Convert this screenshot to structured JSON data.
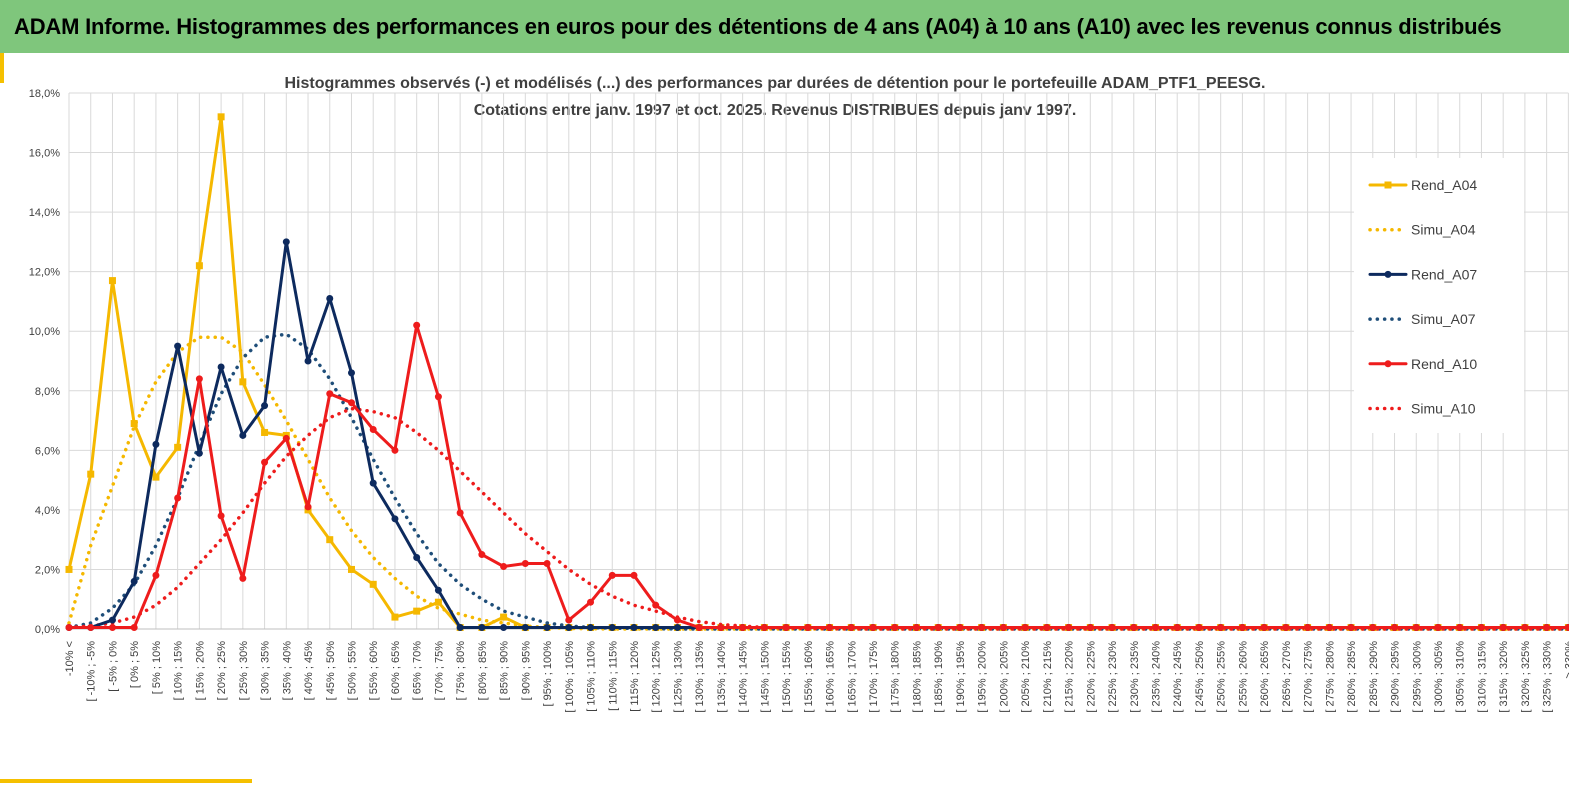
{
  "banner": {
    "title": "ADAM Informe. Histogrammes des performances en euros pour des détentions de 4 ans (A04) à 10 ans (A10) avec les revenus connus distribués"
  },
  "chart_data": {
    "type": "line",
    "title_line1": "Histogrammes observés (-) et modélisés (...) des performances par durées de détention pour le portefeuille ADAM_PTF1_PEESG.",
    "title_line2": "Cotations entre janv. 1997 et oct. 2025. Revenus DISTRIBUES depuis janv 1997.",
    "ylim": [
      0,
      18
    ],
    "y_ticks": [
      "0,0%",
      "2,0%",
      "4,0%",
      "6,0%",
      "8,0%",
      "10,0%",
      "12,0%",
      "14,0%",
      "16,0%",
      "18,0%"
    ],
    "categories": [
      "-10% <",
      "[ -10% ; -5%",
      "[ -5% ; 0%",
      "[ 0% ; 5%",
      "[ 5% ; 10%",
      "[ 10% ; 15%",
      "[ 15% ; 20%",
      "[ 20% ; 25%",
      "[ 25% ; 30%",
      "[ 30% ; 35%",
      "[ 35% ; 40%",
      "[ 40% ; 45%",
      "[ 45% ; 50%",
      "[ 50% ; 55%",
      "[ 55% ; 60%",
      "[ 60% ; 65%",
      "[ 65% ; 70%",
      "[ 70% ; 75%",
      "[ 75% ; 80%",
      "[ 80% ; 85%",
      "[ 85% ; 90%",
      "[ 90% ; 95%",
      "[ 95% ; 100%",
      "[ 100% ; 105%",
      "[ 105% ; 110%",
      "[ 110% ; 115%",
      "[ 115% ; 120%",
      "[ 120% ; 125%",
      "[ 125% ; 130%",
      "[ 130% ; 135%",
      "[ 135% ; 140%",
      "[ 140% ; 145%",
      "[ 145% ; 150%",
      "[ 150% ; 155%",
      "[ 155% ; 160%",
      "[ 160% ; 165%",
      "[ 165% ; 170%",
      "[ 170% ; 175%",
      "[ 175% ; 180%",
      "[ 180% ; 185%",
      "[ 185% ; 190%",
      "[ 190% ; 195%",
      "[ 195% ; 200%",
      "[ 200% ; 205%",
      "[ 205% ; 210%",
      "[ 210% ; 215%",
      "[ 215% ; 220%",
      "[ 220% ; 225%",
      "[ 225% ; 230%",
      "[ 230% ; 235%",
      "[ 235% ; 240%",
      "[ 240% ; 245%",
      "[ 245% ; 250%",
      "[ 250% ; 255%",
      "[ 255% ; 260%",
      "[ 260% ; 265%",
      "[ 265% ; 270%",
      "[ 270% ; 275%",
      "[ 275% ; 280%",
      "[ 280% ; 285%",
      "[ 285% ; 290%",
      "[ 290% ; 295%",
      "[ 295% ; 300%",
      "[ 300% ; 305%",
      "[ 305% ; 310%",
      "[ 310% ; 315%",
      "[ 315% ; 320%",
      "[ 320% ; 325%",
      "[ 325% ; 330%",
      "> 330%"
    ],
    "series": [
      {
        "name": "Rend_A04",
        "style": "solid",
        "marker": "square",
        "color": "#f5b800",
        "values": [
          2.0,
          5.2,
          11.7,
          6.9,
          5.1,
          6.1,
          12.2,
          17.2,
          8.3,
          6.6,
          6.5,
          4.0,
          3.0,
          2.0,
          1.5,
          0.4,
          0.6,
          0.9,
          0.05,
          0.05,
          0.4,
          0.05,
          0.05,
          0.05,
          0.05,
          0.05,
          0.05,
          0.05,
          0.05,
          0.05,
          0.05,
          0.05,
          0.05,
          0.05,
          0.05,
          0.05,
          0.05,
          0.05,
          0.05,
          0.05,
          0.05,
          0.05,
          0.05,
          0.05,
          0.05,
          0.05,
          0.05,
          0.05,
          0.05,
          0.05,
          0.05,
          0.05,
          0.05,
          0.05,
          0.05,
          0.05,
          0.05,
          0.05,
          0.05,
          0.05,
          0.05,
          0.05,
          0.05,
          0.05,
          0.05,
          0.05,
          0.05,
          0.05,
          0.05,
          0.05
        ]
      },
      {
        "name": "Simu_A04",
        "style": "dotted",
        "marker": "none",
        "color": "#f5b800",
        "values": [
          0.2,
          2.8,
          4.8,
          6.8,
          8.3,
          9.3,
          9.8,
          9.8,
          9.3,
          8.2,
          7.0,
          5.7,
          4.4,
          3.3,
          2.4,
          1.7,
          1.1,
          0.7,
          0.5,
          0.3,
          0.2,
          0.1,
          0.05,
          0.02,
          0.01,
          0,
          0,
          0,
          0,
          0,
          0,
          0,
          0,
          0,
          0,
          0,
          0,
          0,
          0,
          0,
          0,
          0,
          0,
          0,
          0,
          0,
          0,
          0,
          0,
          0,
          0,
          0,
          0,
          0,
          0,
          0,
          0,
          0,
          0,
          0,
          0,
          0,
          0,
          0,
          0,
          0,
          0,
          0,
          0,
          0
        ]
      },
      {
        "name": "Rend_A07",
        "style": "solid",
        "marker": "circle",
        "color": "#0d2a5e",
        "values": [
          0.05,
          0.05,
          0.3,
          1.6,
          6.2,
          9.5,
          5.9,
          8.8,
          6.5,
          7.5,
          13.0,
          9.0,
          11.1,
          8.6,
          4.9,
          3.7,
          2.4,
          1.3,
          0.05,
          0.05,
          0.05,
          0.05,
          0.05,
          0.05,
          0.05,
          0.05,
          0.05,
          0.05,
          0.05,
          0.05,
          0.05,
          0.05,
          0.05,
          0.05,
          0.05,
          0.05,
          0.05,
          0.05,
          0.05,
          0.05,
          0.05,
          0.05,
          0.05,
          0.05,
          0.05,
          0.05,
          0.05,
          0.05,
          0.05,
          0.05,
          0.05,
          0.05,
          0.05,
          0.05,
          0.05,
          0.05,
          0.05,
          0.05,
          0.05,
          0.05,
          0.05,
          0.05,
          0.05,
          0.05,
          0.05,
          0.05,
          0.05,
          0.05,
          0.05,
          0.05
        ]
      },
      {
        "name": "Simu_A07",
        "style": "dotted",
        "marker": "none",
        "color": "#1f4e79",
        "values": [
          0.05,
          0.2,
          0.7,
          1.5,
          2.8,
          4.4,
          6.2,
          7.9,
          9.1,
          9.8,
          9.9,
          9.4,
          8.4,
          7.1,
          5.7,
          4.4,
          3.2,
          2.2,
          1.5,
          1.0,
          0.6,
          0.4,
          0.2,
          0.1,
          0.05,
          0.03,
          0.02,
          0.01,
          0,
          0,
          0,
          0,
          0,
          0,
          0,
          0,
          0,
          0,
          0,
          0,
          0,
          0,
          0,
          0,
          0,
          0,
          0,
          0,
          0,
          0,
          0,
          0,
          0,
          0,
          0,
          0,
          0,
          0,
          0,
          0,
          0,
          0,
          0,
          0,
          0,
          0,
          0,
          0,
          0,
          0
        ]
      },
      {
        "name": "Rend_A10",
        "style": "solid",
        "marker": "circle",
        "color": "#ee1c1c",
        "values": [
          0.05,
          0.05,
          0.05,
          0.05,
          1.8,
          4.4,
          8.4,
          3.8,
          1.7,
          5.6,
          6.4,
          4.1,
          7.9,
          7.6,
          6.7,
          6.0,
          10.2,
          7.8,
          3.9,
          2.5,
          2.1,
          2.2,
          2.2,
          0.3,
          0.9,
          1.8,
          1.8,
          0.8,
          0.3,
          0.05,
          0.05,
          0.05,
          0.05,
          0.05,
          0.05,
          0.05,
          0.05,
          0.05,
          0.05,
          0.05,
          0.05,
          0.05,
          0.05,
          0.05,
          0.05,
          0.05,
          0.05,
          0.05,
          0.05,
          0.05,
          0.05,
          0.05,
          0.05,
          0.05,
          0.05,
          0.05,
          0.05,
          0.05,
          0.05,
          0.05,
          0.05,
          0.05,
          0.05,
          0.05,
          0.05,
          0.05,
          0.05,
          0.05,
          0.05,
          0.05
        ]
      },
      {
        "name": "Simu_A10",
        "style": "dotted",
        "marker": "none",
        "color": "#ee1c1c",
        "values": [
          0.05,
          0.1,
          0.2,
          0.4,
          0.8,
          1.4,
          2.2,
          3.0,
          3.9,
          4.9,
          5.8,
          6.5,
          7.1,
          7.4,
          7.3,
          7.1,
          6.6,
          6.0,
          5.3,
          4.6,
          3.9,
          3.2,
          2.6,
          2.0,
          1.5,
          1.1,
          0.8,
          0.6,
          0.4,
          0.25,
          0.15,
          0.1,
          0.05,
          0.03,
          0.02,
          0.01,
          0,
          0,
          0,
          0,
          0,
          0,
          0,
          0,
          0,
          0,
          0,
          0,
          0,
          0,
          0,
          0,
          0,
          0,
          0,
          0,
          0,
          0,
          0,
          0,
          0,
          0,
          0,
          0,
          0,
          0,
          0,
          0,
          0,
          0
        ]
      }
    ]
  }
}
